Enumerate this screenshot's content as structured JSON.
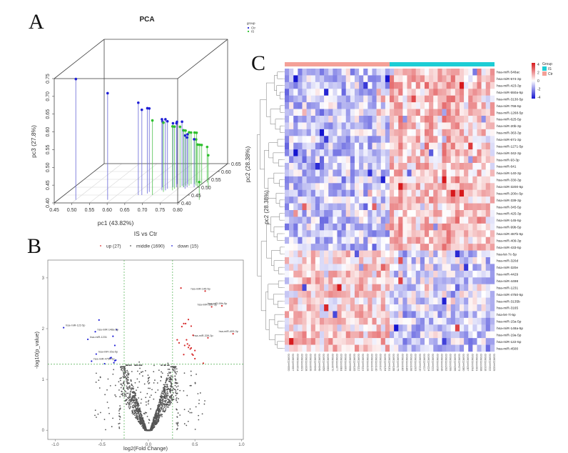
{
  "panels": {
    "a": "A",
    "b": "B",
    "c": "C"
  },
  "chart_data": [
    {
      "id": "pca",
      "type": "scatter",
      "title": "PCA",
      "xlabel": "pc1 (43.82%)",
      "ylabel": "pc3 (27.8%)",
      "zlabel": "pc2 (28.38%)",
      "xlim": [
        0.45,
        0.8
      ],
      "ylim": [
        0.4,
        0.75
      ],
      "zlim": [
        0.4,
        0.65
      ],
      "x_ticks": [
        "0.45",
        "0.50",
        "0.55",
        "0.60",
        "0.65",
        "0.70",
        "0.75",
        "0.80"
      ],
      "y_ticks": [
        "0.40",
        "0.45",
        "0.50",
        "0.55",
        "0.60",
        "0.65",
        "0.70",
        "0.75"
      ],
      "z_ticks": [
        "0.40",
        "0.45",
        "0.50",
        "0.55",
        "0.60",
        "0.65"
      ],
      "legend": {
        "title": "group",
        "position": "top-right",
        "entries": [
          {
            "label": "Ctr",
            "color": "#1f1fd6"
          },
          {
            "label": "IS",
            "color": "#2ec02e"
          }
        ]
      },
      "series": [
        {
          "name": "Ctr",
          "color": "#1f1fd6",
          "points": [
            [
              0.5,
              0.74,
              0.42
            ],
            [
              0.59,
              0.7,
              0.42
            ],
            [
              0.66,
              0.66,
              0.45
            ],
            [
              0.67,
              0.64,
              0.45
            ],
            [
              0.68,
              0.64,
              0.46
            ],
            [
              0.68,
              0.635,
              0.47
            ],
            [
              0.71,
              0.6,
              0.48
            ],
            [
              0.72,
              0.6,
              0.48
            ],
            [
              0.72,
              0.59,
              0.49
            ],
            [
              0.7,
              0.585,
              0.5
            ],
            [
              0.73,
              0.58,
              0.5
            ],
            [
              0.74,
              0.58,
              0.5
            ],
            [
              0.75,
              0.58,
              0.51
            ],
            [
              0.73,
              0.575,
              0.52
            ],
            [
              0.76,
              0.56,
              0.5
            ],
            [
              0.77,
              0.55,
              0.49
            ],
            [
              0.77,
              0.54,
              0.5
            ],
            [
              0.76,
              0.54,
              0.52
            ],
            [
              0.79,
              0.535,
              0.5
            ]
          ]
        },
        {
          "name": "IS",
          "color": "#2ec02e",
          "points": [
            [
              0.7,
              0.61,
              0.45
            ],
            [
              0.72,
              0.595,
              0.47
            ],
            [
              0.74,
              0.58,
              0.48
            ],
            [
              0.74,
              0.575,
              0.49
            ],
            [
              0.75,
              0.57,
              0.5
            ],
            [
              0.76,
              0.56,
              0.5
            ],
            [
              0.76,
              0.555,
              0.51
            ],
            [
              0.77,
              0.55,
              0.51
            ],
            [
              0.77,
              0.545,
              0.52
            ],
            [
              0.78,
              0.545,
              0.52
            ],
            [
              0.78,
              0.54,
              0.53
            ],
            [
              0.79,
              0.53,
              0.51
            ],
            [
              0.8,
              0.52,
              0.5
            ],
            [
              0.8,
              0.515,
              0.51
            ],
            [
              0.8,
              0.51,
              0.52
            ],
            [
              0.81,
              0.5,
              0.53
            ],
            [
              0.83,
              0.49,
              0.5
            ],
            [
              0.85,
              0.45,
              0.42
            ]
          ]
        }
      ]
    },
    {
      "id": "volcano",
      "type": "scatter",
      "title": "IS vs Ctr",
      "xlabel": "log2(Fold Change)",
      "ylabel": "-log10(p_value)",
      "xlim": [
        -1.0,
        1.0
      ],
      "ylim": [
        0,
        3.3
      ],
      "x_ticks": [
        "-1.0",
        "-0.5",
        "0.0",
        "0.5",
        "1.0"
      ],
      "y_ticks": [
        "0",
        "1",
        "2",
        "3"
      ],
      "thresholds": {
        "log2fc": [
          -0.26,
          0.26
        ],
        "neglog10p": 1.3
      },
      "legend": {
        "position": "top",
        "entries": [
          {
            "label": "up (27)",
            "color": "#d62728",
            "count": 27
          },
          {
            "label": "middle (1690)",
            "color": "#555555",
            "count": 1690
          },
          {
            "label": "down (15)",
            "color": "#1f1fd6",
            "count": 15
          }
        ]
      },
      "labeled_points": [
        {
          "label": "hsa-miR-122-5p",
          "x": -0.91,
          "y": 2.02,
          "group": "down"
        },
        {
          "label": "hsa-miR-148a-5p",
          "x": -0.57,
          "y": 1.94,
          "group": "down"
        },
        {
          "label": "hsa-miR-1231",
          "x": -0.65,
          "y": 1.79,
          "group": "down"
        },
        {
          "label": "hsa-miR-15a-5p",
          "x": -0.56,
          "y": 1.5,
          "group": "down"
        },
        {
          "label": "hsa-miR-4750-5p",
          "x": -0.61,
          "y": 1.36,
          "group": "down"
        },
        {
          "label": "hsa-miR-145-5p",
          "x": 0.61,
          "y": 2.74,
          "group": "up"
        },
        {
          "label": "hsa-miR-99b-5p",
          "x": 0.79,
          "y": 2.45,
          "group": "up"
        },
        {
          "label": "hsa-miR-330-3p",
          "x": 0.68,
          "y": 2.43,
          "group": "up"
        },
        {
          "label": "hsa-miR-409-3p",
          "x": 0.91,
          "y": 1.9,
          "group": "up"
        },
        {
          "label": "hsa-miR-339-3p",
          "x": 0.64,
          "y": 1.82,
          "group": "up"
        }
      ],
      "other_down": [
        [
          -0.53,
          2.17
        ],
        [
          -0.34,
          1.98
        ],
        [
          -0.38,
          1.85
        ],
        [
          -0.36,
          1.67
        ],
        [
          -0.4,
          1.43
        ],
        [
          -0.41,
          1.42
        ],
        [
          -0.35,
          1.38
        ],
        [
          -0.37,
          1.33
        ],
        [
          -0.47,
          1.31
        ],
        [
          -0.36,
          1.37
        ]
      ],
      "other_up": [
        [
          0.35,
          2.8
        ],
        [
          0.43,
          2.18
        ],
        [
          0.38,
          2.1
        ],
        [
          0.4,
          2.1
        ],
        [
          0.46,
          2.05
        ],
        [
          0.36,
          2.04
        ],
        [
          0.48,
          1.87
        ],
        [
          0.31,
          1.78
        ],
        [
          0.41,
          1.78
        ],
        [
          0.33,
          1.72
        ],
        [
          0.42,
          1.7
        ],
        [
          0.39,
          1.67
        ],
        [
          0.44,
          1.67
        ],
        [
          0.45,
          1.6
        ],
        [
          0.5,
          1.57
        ],
        [
          0.47,
          1.5
        ],
        [
          0.38,
          1.49
        ],
        [
          0.48,
          1.48
        ],
        [
          0.5,
          1.41
        ],
        [
          0.59,
          1.32
        ],
        [
          0.43,
          1.63
        ],
        [
          0.46,
          1.62
        ]
      ]
    },
    {
      "id": "heatmap",
      "type": "heatmap",
      "title": "",
      "annotation": {
        "title": "Group",
        "entries": [
          {
            "label": "IS",
            "color": "#1ccdd5"
          },
          {
            "label": "Ctr",
            "color": "#f4a097"
          }
        ],
        "ctr_columns": 24,
        "is_columns": 24
      },
      "color_scale": {
        "min": -4,
        "max": 4,
        "ticks": [
          "4",
          "2",
          "0",
          "-2",
          "-4"
        ],
        "low": "#1515d0",
        "mid": "#ffffff",
        "high": "#d7191c"
      },
      "column_label_prefix": "GSM",
      "rows": [
        "hsa-miR-548ac",
        "hsa-miR-574-3p",
        "hsa-miR-423-3p",
        "hsa-miR-550a-5p",
        "hsa-miR-3130-5p",
        "hsa-miR-766-5p",
        "hsa-miR-1268-5p",
        "hsa-miR-625-5p",
        "hsa-miR-20b-3p",
        "hsa-miR-363-3p",
        "hsa-miR-671-3p",
        "hsa-miR-1271-5p",
        "hsa-miR-342-3p",
        "hsa-miR-93-3p",
        "hsa-miR-641",
        "hsa-miR-140-3p",
        "hsa-miR-330-3p",
        "hsa-miR-3200-5p",
        "hsa-miR-200c-5p",
        "hsa-miR-339-3p",
        "hsa-miR-345-5p",
        "hsa-miR-425-3p",
        "hsa-miR-145-5p",
        "hsa-miR-99b-5p",
        "hsa-miR-487b-5p",
        "hsa-miR-409-3p",
        "hsa-miR-433-5p",
        "hsa-let-7c-5p",
        "hsa-miR-320d",
        "hsa-miR-320e",
        "hsa-miR-4429",
        "hsa-miR-4498",
        "hsa-miR-1231",
        "hsa-miR-4750-5p",
        "hsa-miR-3135b",
        "hsa-miR-3165",
        "hsa-let-7i-5p",
        "hsa-miR-15a-5p",
        "hsa-miR-148a-5p",
        "hsa-miR-19a-5p",
        "hsa-miR-122-5p",
        "hsa-miR-4500"
      ],
      "row_trend_ctr_minus_is": [
        -1,
        -1,
        -1,
        -1,
        -1,
        -1,
        -1,
        -1,
        -1,
        -1,
        -1,
        -1,
        -1,
        -1,
        -1,
        -1,
        -1,
        -1,
        -1,
        -1,
        -1,
        -1,
        -1,
        -1,
        -1,
        -1,
        -1,
        0.6,
        0.6,
        0.6,
        0.6,
        0.6,
        0.6,
        0.6,
        0.6,
        0.6,
        0.8,
        0.8,
        0.8,
        0.8,
        0.9,
        0.9
      ]
    }
  ]
}
